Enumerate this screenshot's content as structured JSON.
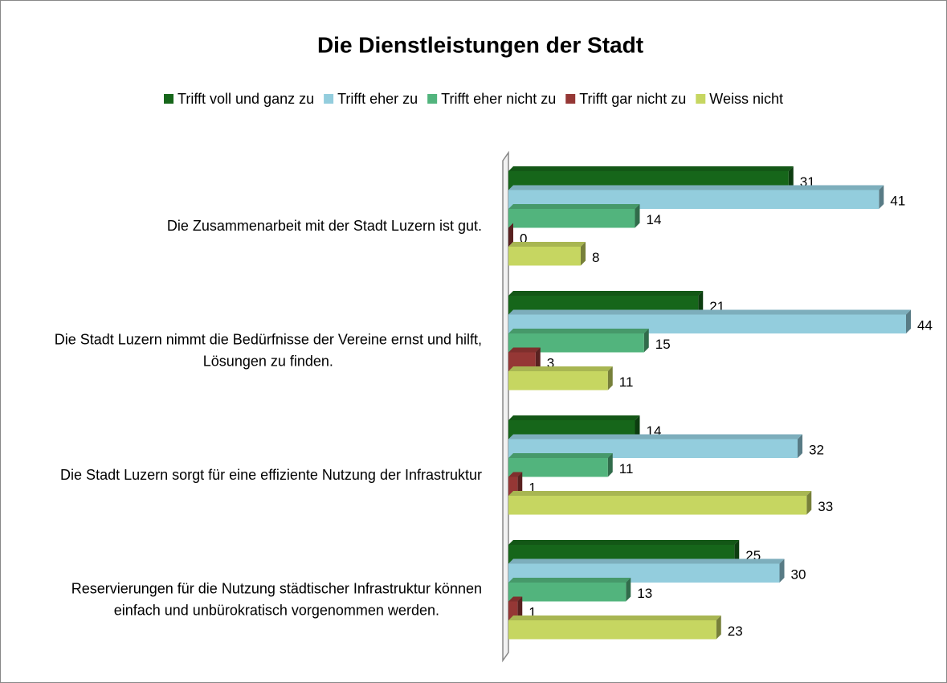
{
  "chart_data": {
    "type": "bar",
    "orientation": "horizontal",
    "title": "Die Dienstleistungen der Stadt",
    "legend": "top",
    "categories": [
      "Die Zusammenarbeit mit der Stadt Luzern ist gut.",
      "Die Stadt Luzern nimmt die Bedürfnisse der Vereine ernst und hilft, Lösungen zu finden.",
      "Die Stadt Luzern sorgt für eine effiziente Nutzung der Infrastruktur",
      "Reservierungen für die Nutzung städtischer Infrastruktur können einfach und unbürokratisch vorgenommen werden."
    ],
    "series": [
      {
        "name": "Trifft voll und ganz zu",
        "color": "#16661a",
        "values": [
          31,
          21,
          14,
          25
        ]
      },
      {
        "name": "Trifft eher zu",
        "color": "#93cddd",
        "values": [
          41,
          44,
          32,
          30
        ]
      },
      {
        "name": "Trifft eher nicht zu",
        "color": "#52b47d",
        "values": [
          14,
          15,
          11,
          13
        ]
      },
      {
        "name": "Trifft gar nicht zu",
        "color": "#953735",
        "values": [
          0,
          3,
          1,
          1
        ]
      },
      {
        "name": "Weiss nicht",
        "color": "#c6d661",
        "values": [
          8,
          11,
          33,
          23
        ]
      }
    ]
  }
}
